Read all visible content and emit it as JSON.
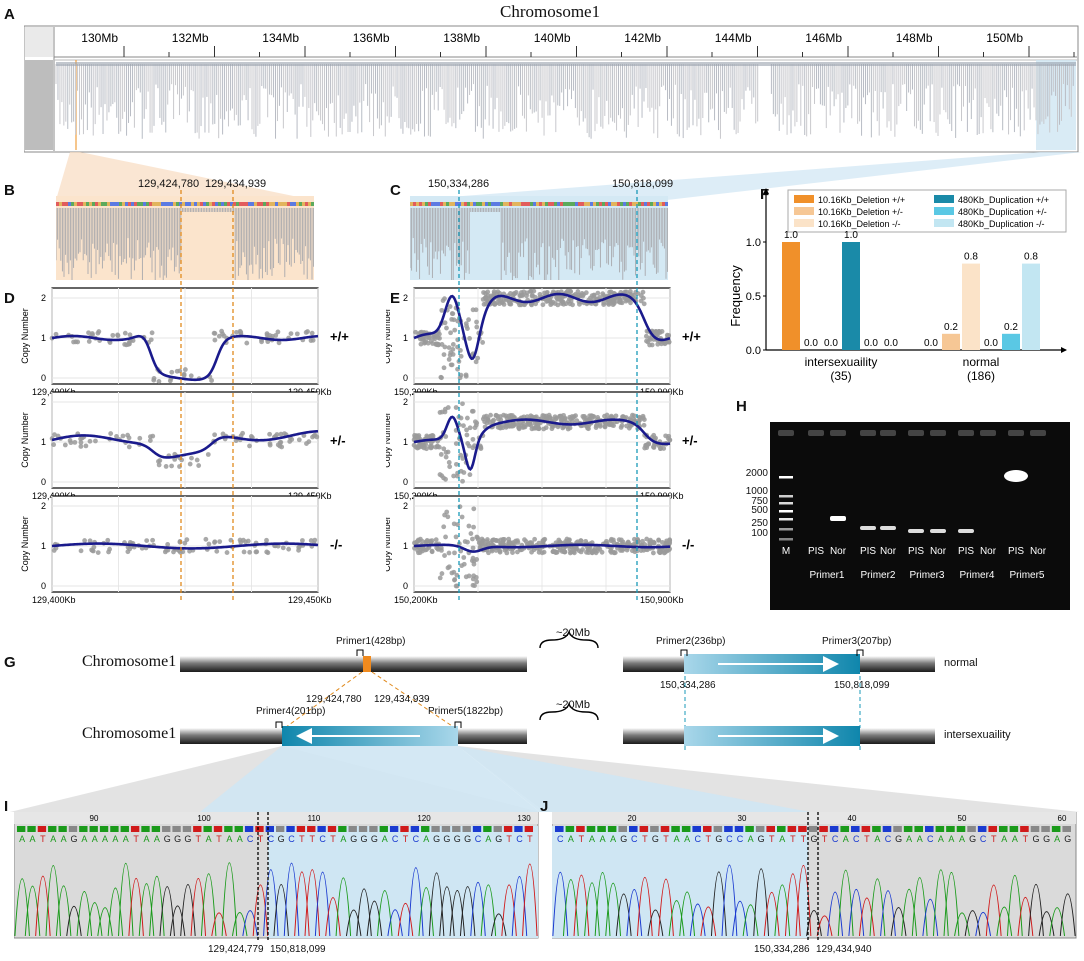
{
  "panels": {
    "A": {
      "letter": "A",
      "title": "Chromosome1",
      "ticks": [
        "130Mb",
        "132Mb",
        "134Mb",
        "136Mb",
        "138Mb",
        "140Mb",
        "142Mb",
        "144Mb",
        "146Mb",
        "148Mb",
        "150Mb"
      ]
    },
    "B": {
      "letter": "B",
      "pos_left": "129,424,780",
      "pos_right": "129,434,939"
    },
    "C": {
      "letter": "C",
      "pos_left": "150,334,286",
      "pos_right": "150,818,099"
    },
    "D": {
      "letter": "D",
      "ylabel": "Copy Number",
      "x_start": "129,400Kb",
      "x_end": "129,450Kb",
      "genotypes": [
        "+/+",
        "+/-",
        "-/-"
      ],
      "yticks": [
        "0",
        "1",
        "2"
      ]
    },
    "E": {
      "letter": "E",
      "ylabel": "Copy Number",
      "x_start": "150,200Kb",
      "x_end": "150,900Kb",
      "genotypes": [
        "+/+",
        "+/-",
        "-/-"
      ],
      "yticks": [
        "0",
        "1",
        "2"
      ]
    },
    "F": {
      "letter": "F",
      "ylabel": "Frequency",
      "yticks": [
        "0.0",
        "0.5",
        "1.0"
      ],
      "legend": [
        {
          "label": "10.16Kb_Deletion +/+",
          "color": "#f0902a"
        },
        {
          "label": "10.16Kb_Deletion +/-",
          "color": "#f6c795"
        },
        {
          "label": "10.16Kb_Deletion -/-",
          "color": "#fbe3c8"
        },
        {
          "label": "480Kb_Duplication +/+",
          "color": "#1a8aa8"
        },
        {
          "label": "480Kb_Duplication +/-",
          "color": "#5ac8e4"
        },
        {
          "label": "480Kb_Duplication -/-",
          "color": "#c2e6f2"
        }
      ],
      "groups": [
        {
          "name": "intersexuaility",
          "n": "(35)",
          "labels": [
            "1.0",
            "0.0",
            "0.0",
            "1.0",
            "0.0",
            "0.0"
          ]
        },
        {
          "name": "normal",
          "n": "(186)",
          "labels": [
            "0.0",
            "0.2",
            "0.8",
            "0.0",
            "0.2",
            "0.8"
          ]
        }
      ]
    },
    "H": {
      "letter": "H",
      "ladder": [
        "2000",
        "1000",
        "750",
        "500",
        "250",
        "100"
      ],
      "lanes": [
        "M",
        "PIS",
        "Nor",
        "PIS",
        "Nor",
        "PIS",
        "Nor",
        "PIS",
        "Nor",
        "PIS",
        "Nor"
      ],
      "primers": [
        "Primer1",
        "Primer2",
        "Primer3",
        "Primer4",
        "Primer5"
      ]
    },
    "G": {
      "letter": "G",
      "chrom_label": "Chromosome1",
      "gap_label": "~20Mb",
      "normal_label": "normal",
      "inter_label": "intersexuaility",
      "primer1": "Primer1(428bp)",
      "primer2": "Primer2(236bp)",
      "primer3": "Primer3(207bp)",
      "primer4": "Primer4(201bp)",
      "primer5": "Primer5(1822bp)",
      "pos1": "129,424,780",
      "pos2": "129,434,939",
      "pos3": "150,334,286",
      "pos4": "150,818,099"
    },
    "I": {
      "letter": "I",
      "ruler": [
        "90",
        "100",
        "110",
        "120",
        "130"
      ],
      "seq": "AATAAGAAAAATAAGGGTATAACTCGCTTCTAGGGACTCAGGGGCAGTCT",
      "pos_left": "129,424,779",
      "pos_right": "150,818,099"
    },
    "J": {
      "letter": "J",
      "ruler": [
        "20",
        "30",
        "40",
        "50",
        "60"
      ],
      "seq": "CATAAAGCTGTAACTGCCAGTATTGTCACTACGAACAAAGCTAATGGAG",
      "pos_left": "150,334,286",
      "pos_right": "129,434,940"
    }
  },
  "colors": {
    "orange": "#e08a1e",
    "teal": "#1a8aa8",
    "navy": "#1a1a8c",
    "point": "#9a9a9a"
  }
}
